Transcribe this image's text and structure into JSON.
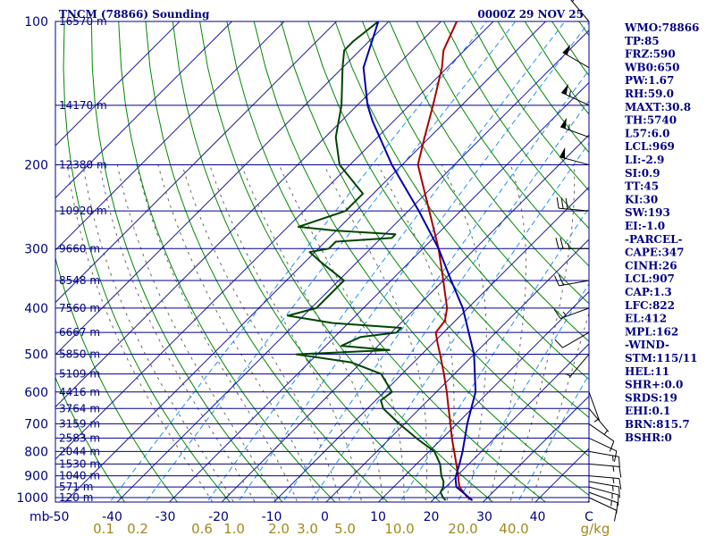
{
  "chart_data": {
    "type": "skew-t",
    "title": "TNCM (78866) Sounding",
    "datetime": "0000Z 29 NOV 25",
    "pressure_levels": [
      100,
      200,
      300,
      400,
      500,
      600,
      700,
      800,
      900,
      1000
    ],
    "pressure_labels": [
      "100",
      "200",
      "300",
      "400",
      "500",
      "600",
      "700",
      "800",
      "900",
      "1000"
    ],
    "pressure_unit": "mb",
    "temperature_ticks": [
      -50,
      -40,
      -30,
      -20,
      -10,
      0,
      10,
      20,
      30,
      40
    ],
    "temperature_labels": [
      "-50",
      "-40",
      "-30",
      "-20",
      "-10",
      "0",
      "10",
      "20",
      "30",
      "40",
      "C"
    ],
    "mixing_ratio_labels": [
      "0.1",
      "0.2",
      "0.6",
      "1.0",
      "2.0",
      "3.0",
      "5.0",
      "10.0",
      "20.0",
      "40.0",
      "g/kg"
    ],
    "height_levels": [
      {
        "p": 100,
        "label": "16570 m"
      },
      {
        "p": 150,
        "label": "14170 m"
      },
      {
        "p": 200,
        "label": "12380 m"
      },
      {
        "p": 250,
        "label": "10920 m"
      },
      {
        "p": 300,
        "label": "9660 m"
      },
      {
        "p": 350,
        "label": "8548 m"
      },
      {
        "p": 400,
        "label": "7560 m"
      },
      {
        "p": 450,
        "label": "6667 m"
      },
      {
        "p": 500,
        "label": "5850 m"
      },
      {
        "p": 550,
        "label": "5109 m"
      },
      {
        "p": 600,
        "label": "4416 m"
      },
      {
        "p": 650,
        "label": "3764 m"
      },
      {
        "p": 700,
        "label": "3159 m"
      },
      {
        "p": 750,
        "label": "2583 m"
      },
      {
        "p": 800,
        "label": "2044 m"
      },
      {
        "p": 850,
        "label": "1530 m"
      },
      {
        "p": 900,
        "label": "1040 m"
      },
      {
        "p": 950,
        "label": "571 m"
      },
      {
        "p": 1000,
        "label": "120 m"
      }
    ],
    "series": [
      {
        "name": "Temperature",
        "color": "#aa0000",
        "points": [
          [
            1013,
            27.6
          ],
          [
            1000,
            26.2
          ],
          [
            975,
            24.4
          ],
          [
            950,
            22.6
          ],
          [
            925,
            21.4
          ],
          [
            900,
            20.2
          ],
          [
            850,
            17.6
          ],
          [
            800,
            14.8
          ],
          [
            750,
            11.8
          ],
          [
            700,
            8.8
          ],
          [
            650,
            5.5
          ],
          [
            600,
            2.0
          ],
          [
            550,
            -2.0
          ],
          [
            500,
            -6.5
          ],
          [
            475,
            -9.0
          ],
          [
            450,
            -11.5
          ],
          [
            425,
            -12.0
          ],
          [
            400,
            -14.0
          ],
          [
            350,
            -20.0
          ],
          [
            300,
            -27.0
          ],
          [
            250,
            -36.0
          ],
          [
            200,
            -47.0
          ],
          [
            175,
            -51.0
          ],
          [
            150,
            -55.5
          ],
          [
            125,
            -61.0
          ],
          [
            115,
            -64.0
          ],
          [
            100,
            -67.0
          ]
        ]
      },
      {
        "name": "Dewpoint",
        "color": "#004400",
        "points": [
          [
            1013,
            22.5
          ],
          [
            1000,
            21.5
          ],
          [
            975,
            20.0
          ],
          [
            950,
            19.5
          ],
          [
            925,
            18.5
          ],
          [
            900,
            17.0
          ],
          [
            850,
            14.5
          ],
          [
            800,
            11.0
          ],
          [
            750,
            5.0
          ],
          [
            700,
            -1.0
          ],
          [
            650,
            -7.0
          ],
          [
            625,
            -9.0
          ],
          [
            600,
            -8.5
          ],
          [
            550,
            -14.0
          ],
          [
            520,
            -22.0
          ],
          [
            500,
            -34.0
          ],
          [
            490,
            -17.0
          ],
          [
            480,
            -27.0
          ],
          [
            460,
            -25.0
          ],
          [
            450,
            -19.0
          ],
          [
            440,
            -19.0
          ],
          [
            430,
            -33.0
          ],
          [
            415,
            -43.0
          ],
          [
            400,
            -39.0
          ],
          [
            380,
            -39.0
          ],
          [
            350,
            -39.0
          ],
          [
            320,
            -47.0
          ],
          [
            305,
            -51.0
          ],
          [
            300,
            -48.0
          ],
          [
            290,
            -48.0
          ],
          [
            285,
            -38.0
          ],
          [
            280,
            -38.0
          ],
          [
            275,
            -50.0
          ],
          [
            270,
            -58.0
          ],
          [
            250,
            -52.0
          ],
          [
            230,
            -52.0
          ],
          [
            200,
            -62.0
          ],
          [
            175,
            -68.0
          ],
          [
            150,
            -73.0
          ],
          [
            125,
            -80.0
          ],
          [
            115,
            -83.0
          ],
          [
            110,
            -83.0
          ],
          [
            100,
            -82.0
          ]
        ]
      },
      {
        "name": "Parcel",
        "color": "#0000aa",
        "points": [
          [
            1013,
            27.6
          ],
          [
            950,
            22.0
          ],
          [
            907,
            20.0
          ],
          [
            850,
            18.2
          ],
          [
            800,
            16.4
          ],
          [
            700,
            12.0
          ],
          [
            600,
            7.5
          ],
          [
            500,
            0.0
          ],
          [
            400,
            -11.0
          ],
          [
            350,
            -18.5
          ],
          [
            300,
            -27.0
          ],
          [
            250,
            -38.0
          ],
          [
            200,
            -52.0
          ],
          [
            162,
            -64.0
          ],
          [
            150,
            -68.0
          ],
          [
            125,
            -76.0
          ],
          [
            100,
            -82.0
          ]
        ]
      }
    ],
    "wind_barbs": [
      {
        "p": 1000,
        "dir": 115,
        "spd": 10
      },
      {
        "p": 975,
        "dir": 110,
        "spd": 15
      },
      {
        "p": 950,
        "dir": 105,
        "spd": 15
      },
      {
        "p": 925,
        "dir": 100,
        "spd": 15
      },
      {
        "p": 900,
        "dir": 95,
        "spd": 15
      },
      {
        "p": 850,
        "dir": 95,
        "spd": 15
      },
      {
        "p": 800,
        "dir": 100,
        "spd": 15
      },
      {
        "p": 750,
        "dir": 115,
        "spd": 10
      },
      {
        "p": 700,
        "dir": 125,
        "spd": 10
      },
      {
        "p": 650,
        "dir": 140,
        "spd": 5
      },
      {
        "p": 600,
        "dir": 160,
        "spd": 5
      },
      {
        "p": 500,
        "dir": 220,
        "spd": 5
      },
      {
        "p": 450,
        "dir": 240,
        "spd": 10
      },
      {
        "p": 400,
        "dir": 250,
        "spd": 15
      },
      {
        "p": 350,
        "dir": 260,
        "spd": 20
      },
      {
        "p": 300,
        "dir": 270,
        "spd": 25
      },
      {
        "p": 250,
        "dir": 275,
        "spd": 30
      },
      {
        "p": 200,
        "dir": 285,
        "spd": 50
      },
      {
        "p": 175,
        "dir": 290,
        "spd": 55
      },
      {
        "p": 150,
        "dir": 295,
        "spd": 55
      },
      {
        "p": 125,
        "dir": 300,
        "spd": 50
      },
      {
        "p": 100,
        "dir": 320,
        "spd": 20
      }
    ],
    "indices": [
      "WMO:78866",
      "TP:85",
      "FRZ:590",
      "WB0:650",
      "PW:1.67",
      "RH:59.0",
      "MAXT:30.8",
      "TH:5740",
      "L57:6.0",
      "LCL:969",
      "LI:-2.9",
      "SI:0.9",
      "TT:45",
      "KI:30",
      "SW:193",
      "EI:-1.0",
      "-PARCEL-",
      "CAPE:347",
      "CINH:26",
      "LCL:907",
      "CAP:1.3",
      "LFC:822",
      "EL:412",
      "MPL:162",
      "-WIND-",
      "STM:115/11",
      "HEL:11",
      "SHR+:0.0",
      "SRDS:19",
      "EHI:0.1",
      "BRN:815.7",
      "BSHR:0"
    ],
    "colors": {
      "isobar": "#00008b",
      "isotherm": "#2020a0",
      "dry_adiabat": "#008800",
      "moist_adiabat": "#666666",
      "mixing_ratio": "#1e90ff",
      "text": "#000080",
      "mixing_label": "#a08a1e"
    }
  }
}
